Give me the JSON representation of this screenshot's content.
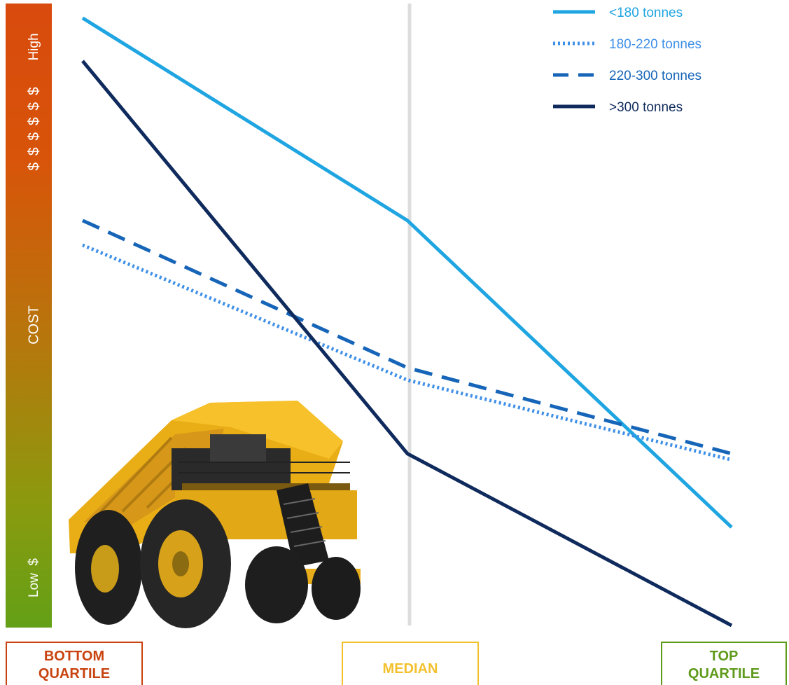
{
  "axis": {
    "y_title": "COST",
    "high_label": "High",
    "low_label": "Low",
    "high_symbols": "$ $ $ $ $ $",
    "low_symbols": "$"
  },
  "quartiles": {
    "bottom": [
      "BOTTOM",
      "QUARTILE"
    ],
    "median": "MEDIAN",
    "top": [
      "TOP",
      "QUARTILE"
    ]
  },
  "colors": {
    "series_lt180": "#1fa5e1",
    "series_180_220": "#3e8fe8",
    "series_220_300": "#1665b8",
    "series_gt300": "#0f2a5c",
    "median_line": "#dddddd",
    "bar_top": "#d84a0d",
    "bar_bottom": "#63a016"
  },
  "chart_data": {
    "type": "line",
    "categories": [
      "BOTTOM QUARTILE",
      "MEDIAN",
      "TOP QUARTILE"
    ],
    "ylim": [
      0,
      100
    ],
    "y_axis_labels": [
      "Low",
      "High"
    ],
    "grid": false,
    "legend_position": "top-right",
    "series": [
      {
        "name": "<180 tonnes",
        "style": "solid",
        "color": "#1fa5e1",
        "values": [
          99,
          66,
          16
        ]
      },
      {
        "name": "180-220 tonnes",
        "style": "dotted",
        "color": "#3e8fe8",
        "values": [
          62,
          40,
          27
        ]
      },
      {
        "name": "220-300 tonnes",
        "style": "dashed",
        "color": "#1665b8",
        "values": [
          66,
          42,
          28
        ]
      },
      {
        "name": ">300 tonnes",
        "style": "solid",
        "color": "#0f2a5c",
        "values": [
          92,
          28,
          0
        ]
      }
    ]
  }
}
